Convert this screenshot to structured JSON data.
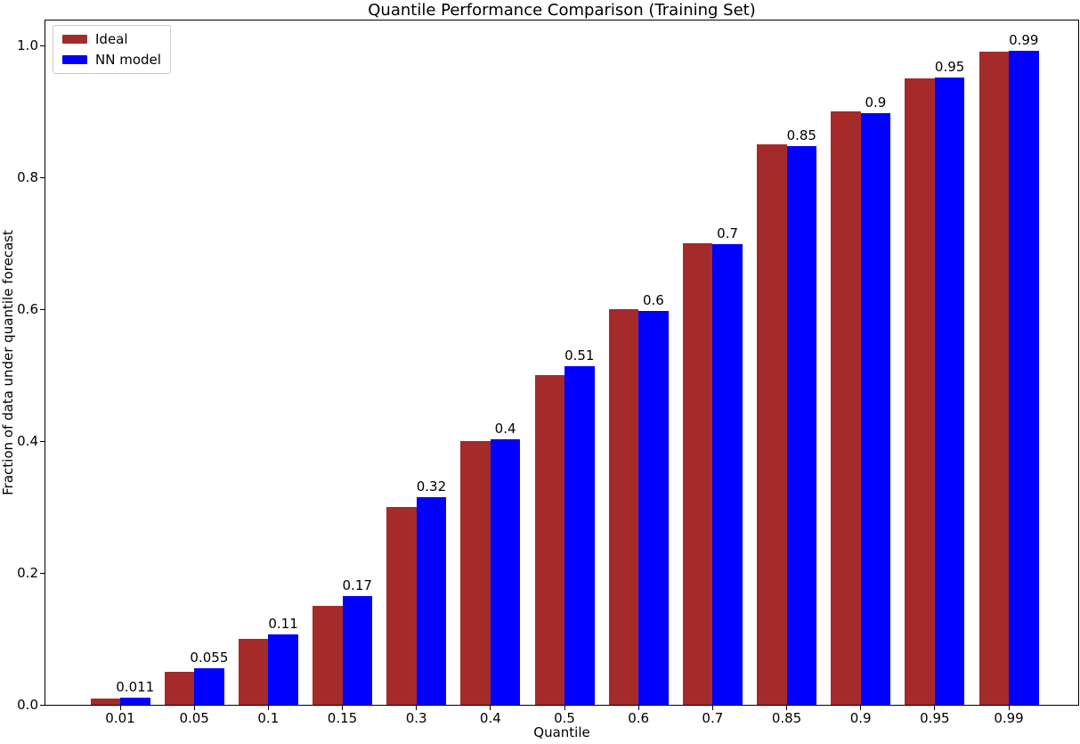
{
  "chart_data": {
    "type": "bar",
    "title": "Quantile Performance Comparison (Training Set)",
    "xlabel": "Quantile",
    "ylabel": "Fraction of data under quantile forecast",
    "categories": [
      "0.01",
      "0.05",
      "0.1",
      "0.15",
      "0.3",
      "0.4",
      "0.5",
      "0.6",
      "0.7",
      "0.85",
      "0.9",
      "0.95",
      "0.99"
    ],
    "series": [
      {
        "name": "Ideal",
        "color": "#a52a2a",
        "values": [
          0.01,
          0.05,
          0.1,
          0.15,
          0.3,
          0.4,
          0.5,
          0.6,
          0.7,
          0.85,
          0.9,
          0.95,
          0.99
        ]
      },
      {
        "name": "NN model",
        "color": "#0000ff",
        "values": [
          0.011,
          0.055,
          0.107,
          0.165,
          0.315,
          0.403,
          0.513,
          0.597,
          0.699,
          0.847,
          0.897,
          0.951,
          0.992
        ]
      }
    ],
    "bar_labels": [
      "0.011",
      "0.055",
      "0.11",
      "0.17",
      "0.32",
      "0.4",
      "0.51",
      "0.6",
      "0.7",
      "0.85",
      "0.9",
      "0.95",
      "0.99"
    ],
    "yticks": [
      0.0,
      0.2,
      0.4,
      0.6,
      0.8,
      1.0
    ],
    "ytick_labels": [
      "0.0",
      "0.2",
      "0.4",
      "0.6",
      "0.8",
      "1.0"
    ],
    "ylim": [
      0,
      1.038
    ],
    "xlim_categories": 13,
    "grid": false,
    "legend_position": "upper left",
    "legend_entries": [
      "Ideal",
      "NN model"
    ]
  }
}
